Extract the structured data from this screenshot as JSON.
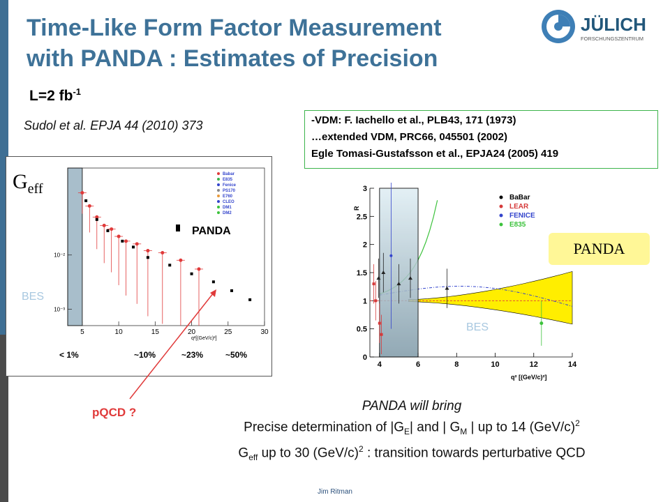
{
  "slide": {
    "title_line1": "Time-Like Form Factor Measurement",
    "title_line2": "with PANDA : Estimates of Precision",
    "luminosity": "L=2 fb",
    "luminosity_exp": "-1",
    "ref_left": "Sudol et al. EPJA 44 (2010) 373",
    "ref_box": [
      "-VDM: F. Iachello et al., PLB43, 171 (1973)",
      "…extended VDM, PRC66, 045501 (2002)",
      "Egle Tomasi-Gustafsson et al., EPJA24 (2005) 419"
    ],
    "pqcd_label": "pQCD ?",
    "summary": {
      "line1": "PANDA will bring",
      "line2_a": "Precise determination of |G",
      "line2_sub1": "E",
      "line2_b": "| and | G",
      "line2_sub2": "M",
      "line2_c": " | up to 14 (GeV/c)",
      "line2_sup": "2",
      "line3_a": "G",
      "line3_sub": "eff",
      "line3_b": " up to 30 (GeV/c)",
      "line3_sup": "2",
      "line3_c": " : transition towards perturbative QCD"
    },
    "footer": "Jim Ritman"
  },
  "logo": {
    "name": "JÜLICH",
    "sub": "FORSCHUNGSZENTRUM",
    "icon": "julich-logo-icon"
  },
  "colors": {
    "title": "#3e7298",
    "accent_green": "#3cb44b",
    "panda_badge": "#fff797",
    "pqcd": "#e03a3a",
    "bes_label": "#a8c8e0"
  },
  "chart_data": [
    {
      "type": "scatter",
      "title": "",
      "ylabel_main": "G",
      "ylabel_sub": "eff",
      "xlabel": "q²[(GeV/c)²]",
      "xlim": [
        3,
        30
      ],
      "ylim_log": [
        0.0005,
        0.4
      ],
      "x_ticks": [
        "5",
        "10",
        "15",
        "20",
        "25",
        "30"
      ],
      "y_ticks": [
        "10⁻²",
        "10⁻³"
      ],
      "legend": [
        "Babar",
        "E835",
        "Fenice",
        "PS170",
        "E760",
        "CLEO",
        "DM1",
        "DM2"
      ],
      "panda_label": "PANDA",
      "bes_label": "BES",
      "bes_band": [
        3.0,
        5.0
      ],
      "precision_labels": [
        "< 1%",
        "~10%",
        "~23%",
        "~50%"
      ],
      "series": [
        {
          "name": "PANDA",
          "x": [
            5.5,
            7,
            8.5,
            10.5,
            12,
            14,
            17,
            20,
            23,
            25.5,
            28
          ],
          "y": [
            0.1,
            0.045,
            0.028,
            0.018,
            0.014,
            0.009,
            0.0065,
            0.0045,
            0.0032,
            0.0022,
            0.0015
          ]
        },
        {
          "name": "Babar",
          "x": [
            5,
            6,
            7,
            8,
            9,
            10,
            11,
            12.5,
            14,
            16,
            18.5,
            21
          ],
          "y": [
            0.14,
            0.08,
            0.05,
            0.035,
            0.03,
            0.022,
            0.018,
            0.016,
            0.012,
            0.011,
            0.008,
            0.0055
          ]
        }
      ]
    },
    {
      "type": "scatter",
      "title": "",
      "ylabel": "R",
      "xlabel": "q² [(GeV/c)²]",
      "xlim": [
        3.5,
        14
      ],
      "ylim": [
        0,
        3
      ],
      "x_ticks": [
        "4",
        "6",
        "8",
        "10",
        "12",
        "14"
      ],
      "y_ticks": [
        "0",
        "0.5",
        "1",
        "1.5",
        "2",
        "2.5",
        "3"
      ],
      "legend": [
        "BaBar",
        "LEAR",
        "FENICE",
        "E835"
      ],
      "panda_label": "PANDA",
      "bes_label": "BES",
      "bes_band": [
        4.0,
        6.0
      ],
      "series": [
        {
          "name": "BaBar",
          "x": [
            3.95,
            4.2,
            5.0,
            5.6,
            7.5
          ],
          "y": [
            1.4,
            1.5,
            1.3,
            1.4,
            1.22
          ]
        },
        {
          "name": "LEAR",
          "x": [
            3.7,
            3.8,
            4.0,
            4.1
          ],
          "y": [
            1.3,
            1.0,
            0.6,
            0.4
          ]
        },
        {
          "name": "FENICE",
          "x": [
            4.6
          ],
          "y": [
            1.8
          ]
        },
        {
          "name": "E835",
          "x": [
            12.4
          ],
          "y": [
            0.6
          ]
        }
      ]
    }
  ]
}
